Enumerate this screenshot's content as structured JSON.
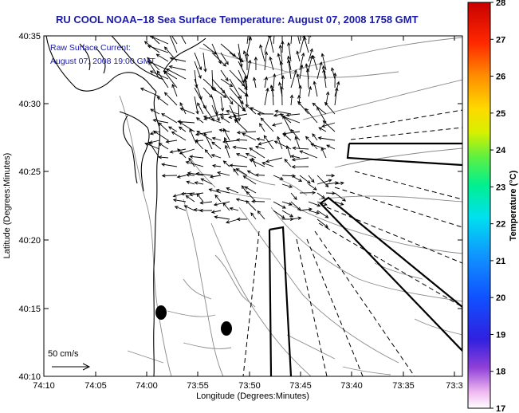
{
  "title": "RU COOL  NOAA−18  Sea Surface Temperature:  August 07, 2008 1758 GMT",
  "annotation": {
    "line1": "Raw Surface Current:",
    "line2": "August 07, 2008 19:00 GMT"
  },
  "axes": {
    "xlabel": "Longitude (Degrees:Minutes)",
    "ylabel": "Latitude (Degrees:Minutes)",
    "xticks": [
      "74:10",
      "74:05",
      "74:00",
      "73:55",
      "73:50",
      "73:45",
      "73:40",
      "73:35",
      "73:3"
    ],
    "yticks": [
      "40:35",
      "40:30",
      "40:25",
      "40:20",
      "40:15",
      "40:10"
    ]
  },
  "scale_label": "50 cm/s",
  "colorbar": {
    "label": "Temperature (°C)",
    "ticks": [
      "28",
      "27",
      "26",
      "25",
      "24",
      "23",
      "22",
      "21",
      "20",
      "19",
      "18",
      "17"
    ],
    "min": 17,
    "max": 28
  },
  "colors": {
    "title": "#1a1aa8",
    "annotation": "#1a1aa8",
    "coast": "#000000",
    "contour": "#8a8a8a"
  }
}
